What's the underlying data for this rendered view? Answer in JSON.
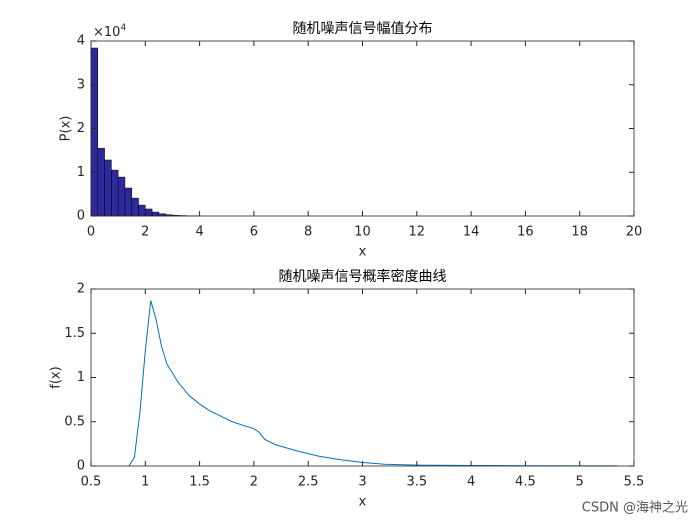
{
  "chart_data": [
    {
      "type": "histogram",
      "title": "随机噪声信号幅值分布",
      "xlabel": "x",
      "ylabel": "P(x)",
      "y_multiplier": {
        "base": "×10",
        "exponent": "4"
      },
      "bins": [
        0,
        0.25,
        0.5,
        0.75,
        1,
        1.25,
        1.5,
        1.75,
        2,
        2.25,
        2.5,
        2.75,
        3,
        3.25,
        3.5,
        3.75,
        4
      ],
      "counts": [
        3.84,
        1.55,
        1.28,
        1.05,
        0.89,
        0.64,
        0.41,
        0.25,
        0.16,
        0.09,
        0.05,
        0.03,
        0.015,
        0.01,
        0.005,
        0.003
      ],
      "color": "#2e2a9c",
      "edge_color": "#000000",
      "xlim": [
        0,
        20
      ],
      "xticks": [
        0,
        2,
        4,
        6,
        8,
        10,
        12,
        14,
        16,
        18,
        20
      ],
      "ylim": [
        0,
        4
      ],
      "yticks": [
        0,
        1,
        2,
        3,
        4
      ]
    },
    {
      "type": "line",
      "title": "随机噪声信号概率密度曲线",
      "xlabel": "x",
      "ylabel": "f(x)",
      "x": [
        0.85,
        0.9,
        0.95,
        1.0,
        1.05,
        1.1,
        1.15,
        1.2,
        1.3,
        1.4,
        1.5,
        1.6,
        1.7,
        1.8,
        1.9,
        2.0,
        2.05,
        2.1,
        2.2,
        2.4,
        2.6,
        2.8,
        3.0,
        3.2,
        3.5,
        4.0,
        4.5,
        5.0,
        5.35
      ],
      "values": [
        0,
        0.1,
        0.6,
        1.3,
        1.87,
        1.65,
        1.35,
        1.15,
        0.95,
        0.8,
        0.7,
        0.62,
        0.56,
        0.5,
        0.46,
        0.42,
        0.38,
        0.3,
        0.24,
        0.17,
        0.11,
        0.07,
        0.04,
        0.02,
        0.01,
        0.005,
        0.003,
        0.002,
        0.001
      ],
      "color": "#0072bd",
      "xlim": [
        0.5,
        5.5
      ],
      "xticks": [
        0.5,
        1,
        1.5,
        2,
        2.5,
        3,
        3.5,
        4,
        4.5,
        5,
        5.5
      ],
      "ylim": [
        0,
        2
      ],
      "yticks": [
        0,
        0.5,
        1,
        1.5,
        2
      ]
    }
  ],
  "watermark": "CSDN @海神之光"
}
